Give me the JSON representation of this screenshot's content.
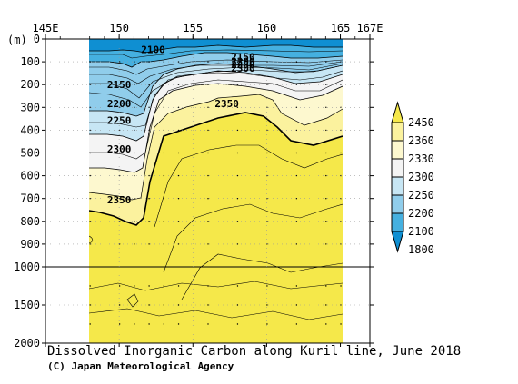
{
  "chart_data": {
    "type": "heatmap",
    "title": "Dissolved Inorganic Carbon along Kuril line, June 2018",
    "credit": "(C) Japan Meteorological Agency",
    "y_unit_label": "(m)",
    "x_ticks": [
      "145E",
      "150",
      "155",
      "160",
      "165",
      "167E"
    ],
    "x_tick_values": [
      145,
      150,
      155,
      160,
      165,
      167
    ],
    "x_range": [
      145,
      167
    ],
    "y_ticks_upper": [
      0,
      100,
      200,
      300,
      400,
      500,
      600,
      700,
      800,
      900,
      1000
    ],
    "y_ticks_lower": [
      1500,
      2000
    ],
    "y_range": [
      0,
      2000
    ],
    "data_extent_lon": [
      148,
      165
    ],
    "contour_labels": [
      {
        "text": "2100",
        "lon": 152.3,
        "depth": 45
      },
      {
        "text": "2150",
        "lon": 158.4,
        "depth": 78
      },
      {
        "text": "2200",
        "lon": 158.4,
        "depth": 97
      },
      {
        "text": "2250",
        "lon": 158.4,
        "depth": 112
      },
      {
        "text": "2300",
        "lon": 158.4,
        "depth": 128
      },
      {
        "text": "2150",
        "lon": 150.0,
        "depth": 200
      },
      {
        "text": "2200",
        "lon": 150.0,
        "depth": 283
      },
      {
        "text": "2250",
        "lon": 150.0,
        "depth": 357
      },
      {
        "text": "2300",
        "lon": 150.0,
        "depth": 483
      },
      {
        "text": "2350",
        "lon": 150.0,
        "depth": 705
      },
      {
        "text": "2350",
        "lon": 157.3,
        "depth": 283
      }
    ],
    "legend": {
      "levels": [
        "2450",
        "2360",
        "2330",
        "2300",
        "2250",
        "2200",
        "2100",
        "1800"
      ],
      "colors": [
        "#f5e84a",
        "#fbf29e",
        "#fdf8cf",
        "#f4f4f4",
        "#c7e6f4",
        "#90cdeb",
        "#45b0e0",
        "#0f8fd2"
      ]
    },
    "colors": {
      "deep_yellow": "#f5e84a",
      "pale_yellow": "#fdf8cf",
      "light_blue": "#90cdeb",
      "deep_blue": "#0f8fd2"
    }
  }
}
